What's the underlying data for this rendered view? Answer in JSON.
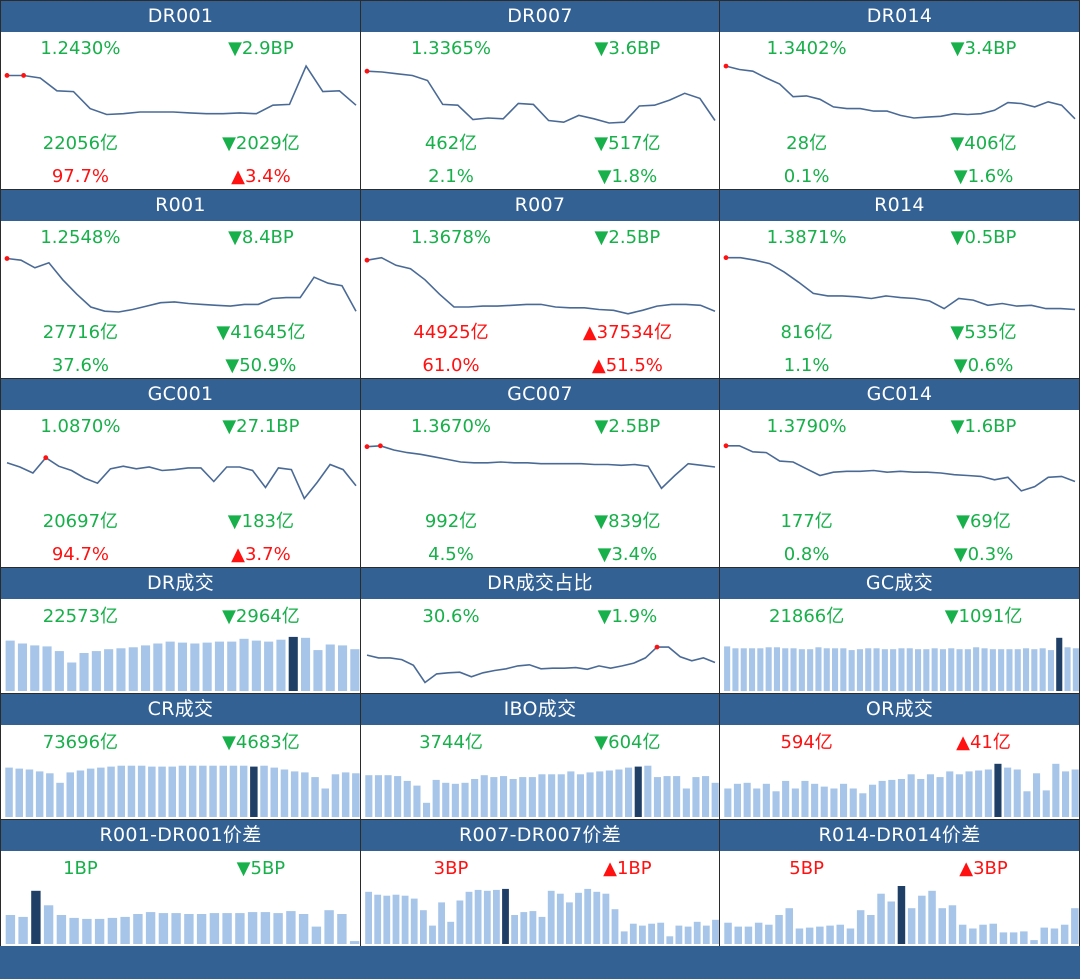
{
  "colors": {
    "header_bg": "#336194",
    "up": "#ff1111",
    "down": "#17b04a",
    "line": "#4a6a96",
    "bar": "#a6c5e8",
    "bar_highlight": "#1f3f66"
  },
  "panels": [
    {
      "id": "dr001",
      "title": "DR001",
      "type": "line",
      "stats": [
        {
          "text": "1.2430%",
          "color": "down"
        },
        {
          "text": "▼2.9BP",
          "color": "down"
        },
        {
          "text": "22056亿",
          "color": "down"
        },
        {
          "text": "▼2029亿",
          "color": "down"
        },
        {
          "text": "97.7%",
          "color": "up"
        },
        {
          "text": "▲3.4%",
          "color": "up"
        }
      ]
    },
    {
      "id": "dr007",
      "title": "DR007",
      "type": "line",
      "stats": [
        {
          "text": "1.3365%",
          "color": "down"
        },
        {
          "text": "▼3.6BP",
          "color": "down"
        },
        {
          "text": "462亿",
          "color": "down"
        },
        {
          "text": "▼517亿",
          "color": "down"
        },
        {
          "text": "2.1%",
          "color": "down"
        },
        {
          "text": "▼1.8%",
          "color": "down"
        }
      ]
    },
    {
      "id": "dr014",
      "title": "DR014",
      "type": "line",
      "stats": [
        {
          "text": "1.3402%",
          "color": "down"
        },
        {
          "text": "▼3.4BP",
          "color": "down"
        },
        {
          "text": "28亿",
          "color": "down"
        },
        {
          "text": "▼406亿",
          "color": "down"
        },
        {
          "text": "0.1%",
          "color": "down"
        },
        {
          "text": "▼1.6%",
          "color": "down"
        }
      ]
    },
    {
      "id": "r001",
      "title": "R001",
      "type": "line",
      "stats": [
        {
          "text": "1.2548%",
          "color": "down"
        },
        {
          "text": "▼8.4BP",
          "color": "down"
        },
        {
          "text": "27716亿",
          "color": "down"
        },
        {
          "text": "▼41645亿",
          "color": "down"
        },
        {
          "text": "37.6%",
          "color": "down"
        },
        {
          "text": "▼50.9%",
          "color": "down"
        }
      ]
    },
    {
      "id": "r007",
      "title": "R007",
      "type": "line",
      "stats": [
        {
          "text": "1.3678%",
          "color": "down"
        },
        {
          "text": "▼2.5BP",
          "color": "down"
        },
        {
          "text": "44925亿",
          "color": "up"
        },
        {
          "text": "▲37534亿",
          "color": "up"
        },
        {
          "text": "61.0%",
          "color": "up"
        },
        {
          "text": "▲51.5%",
          "color": "up"
        }
      ]
    },
    {
      "id": "r014",
      "title": "R014",
      "type": "line",
      "stats": [
        {
          "text": "1.3871%",
          "color": "down"
        },
        {
          "text": "▼0.5BP",
          "color": "down"
        },
        {
          "text": "816亿",
          "color": "down"
        },
        {
          "text": "▼535亿",
          "color": "down"
        },
        {
          "text": "1.1%",
          "color": "down"
        },
        {
          "text": "▼0.6%",
          "color": "down"
        }
      ]
    },
    {
      "id": "gc001",
      "title": "GC001",
      "type": "line",
      "stats": [
        {
          "text": "1.0870%",
          "color": "down"
        },
        {
          "text": "▼27.1BP",
          "color": "down"
        },
        {
          "text": "20697亿",
          "color": "down"
        },
        {
          "text": "▼183亿",
          "color": "down"
        },
        {
          "text": "94.7%",
          "color": "up"
        },
        {
          "text": "▲3.7%",
          "color": "up"
        }
      ]
    },
    {
      "id": "gc007",
      "title": "GC007",
      "type": "line",
      "stats": [
        {
          "text": "1.3670%",
          "color": "down"
        },
        {
          "text": "▼2.5BP",
          "color": "down"
        },
        {
          "text": "992亿",
          "color": "down"
        },
        {
          "text": "▼839亿",
          "color": "down"
        },
        {
          "text": "4.5%",
          "color": "down"
        },
        {
          "text": "▼3.4%",
          "color": "down"
        }
      ]
    },
    {
      "id": "gc014",
      "title": "GC014",
      "type": "line",
      "stats": [
        {
          "text": "1.3790%",
          "color": "down"
        },
        {
          "text": "▼1.6BP",
          "color": "down"
        },
        {
          "text": "177亿",
          "color": "down"
        },
        {
          "text": "▼69亿",
          "color": "down"
        },
        {
          "text": "0.8%",
          "color": "down"
        },
        {
          "text": "▼0.3%",
          "color": "down"
        }
      ]
    },
    {
      "id": "dr-volume",
      "title": "DR成交",
      "type": "bar",
      "stats": [
        {
          "text": "22573亿",
          "color": "down"
        },
        {
          "text": "▼2964亿",
          "color": "down"
        }
      ]
    },
    {
      "id": "dr-volume-share",
      "title": "DR成交占比",
      "type": "line",
      "stats": [
        {
          "text": "30.6%",
          "color": "down"
        },
        {
          "text": "▼1.9%",
          "color": "down"
        }
      ]
    },
    {
      "id": "gc-volume",
      "title": "GC成交",
      "type": "bar",
      "stats": [
        {
          "text": "21866亿",
          "color": "down"
        },
        {
          "text": "▼1091亿",
          "color": "down"
        }
      ]
    },
    {
      "id": "cr-volume",
      "title": "CR成交",
      "type": "bar",
      "stats": [
        {
          "text": "73696亿",
          "color": "down"
        },
        {
          "text": "▼4683亿",
          "color": "down"
        }
      ]
    },
    {
      "id": "ibo-volume",
      "title": "IBO成交",
      "type": "bar",
      "stats": [
        {
          "text": "3744亿",
          "color": "down"
        },
        {
          "text": "▼604亿",
          "color": "down"
        }
      ]
    },
    {
      "id": "or-volume",
      "title": "OR成交",
      "type": "bar",
      "stats": [
        {
          "text": "594亿",
          "color": "up"
        },
        {
          "text": "▲41亿",
          "color": "up"
        }
      ]
    },
    {
      "id": "r001-dr001-spread",
      "title": "R001-DR001价差",
      "type": "bar",
      "stats": [
        {
          "text": "1BP",
          "color": "down"
        },
        {
          "text": "▼5BP",
          "color": "down"
        }
      ]
    },
    {
      "id": "r007-dr007-spread",
      "title": "R007-DR007价差",
      "type": "bar",
      "stats": [
        {
          "text": "3BP",
          "color": "up"
        },
        {
          "text": "▲1BP",
          "color": "up"
        }
      ]
    },
    {
      "id": "r014-dr014-spread",
      "title": "R014-DR014价差",
      "type": "bar",
      "stats": [
        {
          "text": "5BP",
          "color": "up"
        },
        {
          "text": "▲3BP",
          "color": "up"
        }
      ]
    }
  ],
  "chart_data": [
    {
      "type": "line",
      "title": "DR001",
      "values": [
        83,
        83,
        80,
        65,
        64,
        44,
        37,
        38,
        40,
        40,
        40,
        39,
        38,
        38,
        39,
        38,
        48,
        49,
        94,
        64,
        65,
        48
      ],
      "ylim": [
        20,
        100
      ],
      "markers": [
        0,
        1
      ]
    },
    {
      "type": "line",
      "title": "DR007",
      "values": [
        88,
        87,
        85,
        83,
        77,
        49,
        48,
        31,
        33,
        32,
        50,
        49,
        30,
        28,
        36,
        32,
        27,
        28,
        47,
        48,
        54,
        62,
        56,
        30
      ],
      "ylim": [
        20,
        100
      ],
      "markers": [
        0
      ]
    },
    {
      "type": "line",
      "title": "DR014",
      "values": [
        94,
        90,
        88,
        80,
        73,
        58,
        59,
        55,
        46,
        44,
        44,
        41,
        41,
        36,
        33,
        34,
        35,
        38,
        37,
        38,
        42,
        51,
        50,
        46,
        52,
        48,
        32
      ],
      "ylim": [
        20,
        100
      ],
      "markers": [
        0
      ]
    },
    {
      "type": "line",
      "title": "R001",
      "values": [
        90,
        88,
        79,
        85,
        65,
        48,
        33,
        28,
        27,
        30,
        34,
        38,
        39,
        37,
        36,
        35,
        34,
        36,
        36,
        43,
        44,
        44,
        68,
        61,
        58,
        28
      ],
      "ylim": [
        20,
        100
      ],
      "markers": [
        0
      ]
    },
    {
      "type": "line",
      "title": "R007",
      "values": [
        88,
        91,
        82,
        78,
        65,
        48,
        33,
        33,
        34,
        34,
        35,
        36,
        36,
        33,
        32,
        32,
        30,
        29,
        25,
        29,
        34,
        36,
        36,
        35,
        28
      ],
      "ylim": [
        20,
        100
      ],
      "markers": [
        0
      ]
    },
    {
      "type": "line",
      "title": "R014",
      "values": [
        91,
        91,
        88,
        84,
        74,
        62,
        49,
        46,
        46,
        45,
        43,
        46,
        44,
        43,
        40,
        31,
        43,
        41,
        35,
        37,
        34,
        35,
        31,
        31,
        30
      ],
      "ylim": [
        20,
        100
      ],
      "markers": [
        0
      ]
    },
    {
      "type": "line",
      "title": "GC001",
      "values": [
        72,
        67,
        60,
        78,
        68,
        63,
        54,
        48,
        65,
        68,
        65,
        67,
        63,
        64,
        66,
        66,
        50,
        67,
        67,
        63,
        43,
        66,
        64,
        30,
        49,
        70,
        64,
        45
      ],
      "ylim": [
        20,
        100
      ],
      "markers": [
        3
      ]
    },
    {
      "type": "line",
      "title": "GC007",
      "values": [
        91,
        92,
        87,
        84,
        82,
        79,
        76,
        73,
        72,
        72,
        73,
        72,
        72,
        71,
        71,
        71,
        71,
        70,
        70,
        69,
        70,
        68,
        42,
        57,
        71,
        69,
        67
      ],
      "ylim": [
        20,
        100
      ],
      "markers": [
        0,
        1
      ]
    },
    {
      "type": "line",
      "title": "GC014",
      "values": [
        92,
        92,
        85,
        84,
        74,
        73,
        65,
        57,
        61,
        62,
        62,
        63,
        61,
        62,
        61,
        61,
        60,
        58,
        57,
        56,
        52,
        55,
        39,
        44,
        55,
        56,
        50
      ],
      "ylim": [
        20,
        100
      ],
      "markers": [
        0
      ]
    },
    {
      "type": "bar",
      "title": "DR成交",
      "values": [
        53,
        50,
        48,
        47,
        42,
        30,
        40,
        42,
        44,
        45,
        46,
        48,
        50,
        52,
        51,
        50,
        51,
        52,
        52,
        55,
        53,
        52,
        54,
        57,
        56,
        43,
        49,
        48,
        44
      ],
      "ylim": [
        0,
        60
      ],
      "highlight": 23
    },
    {
      "type": "line",
      "title": "DR成交占比",
      "values": [
        63,
        58,
        58,
        55,
        45,
        15,
        30,
        32,
        33,
        25,
        32,
        36,
        39,
        44,
        46,
        39,
        40,
        40,
        41,
        38,
        44,
        40,
        44,
        49,
        58,
        77,
        77,
        60,
        53,
        58,
        50
      ],
      "ylim": [
        0,
        100
      ],
      "markers": [
        25
      ]
    },
    {
      "type": "bar",
      "title": "GC成交",
      "values": [
        47,
        45,
        45,
        45,
        45,
        46,
        46,
        45,
        45,
        44,
        44,
        46,
        45,
        45,
        45,
        43,
        44,
        45,
        45,
        44,
        44,
        45,
        45,
        44,
        44,
        45,
        44,
        45,
        44,
        44,
        46,
        45,
        44,
        44,
        44,
        44,
        45,
        44,
        45,
        43,
        56,
        46,
        45
      ],
      "ylim": [
        0,
        60
      ],
      "highlight": 40
    },
    {
      "type": "bar",
      "title": "CR成交",
      "values": [
        52,
        51,
        50,
        48,
        46,
        36,
        47,
        49,
        51,
        52,
        53,
        54,
        54,
        54,
        53,
        53,
        53,
        54,
        54,
        54,
        54,
        54,
        54,
        54,
        53,
        54,
        52,
        50,
        48,
        47,
        42,
        30,
        45,
        47,
        46
      ],
      "ylim": [
        0,
        60
      ],
      "highlight": 24
    },
    {
      "type": "bar",
      "title": "IBO成交",
      "values": [
        44,
        44,
        44,
        43,
        38,
        33,
        15,
        39,
        36,
        35,
        36,
        40,
        44,
        42,
        43,
        40,
        42,
        42,
        45,
        45,
        45,
        48,
        45,
        47,
        48,
        49,
        50,
        52,
        53,
        54,
        42,
        43,
        43,
        30,
        42,
        43,
        36
      ],
      "ylim": [
        0,
        60
      ],
      "highlight": 28
    },
    {
      "type": "bar",
      "title": "OR成交",
      "values": [
        30,
        35,
        36,
        30,
        35,
        27,
        38,
        30,
        38,
        35,
        32,
        30,
        35,
        30,
        25,
        34,
        38,
        39,
        40,
        45,
        40,
        45,
        42,
        48,
        45,
        48,
        49,
        50,
        56,
        52,
        50,
        27,
        46,
        28,
        56,
        48,
        50
      ],
      "ylim": [
        0,
        60
      ],
      "highlight": 28
    },
    {
      "type": "bar",
      "title": "R001-DR001价差",
      "values": [
        30,
        28,
        55,
        40,
        30,
        27,
        26,
        26,
        27,
        28,
        31,
        33,
        32,
        32,
        31,
        31,
        32,
        32,
        32,
        33,
        33,
        32,
        34,
        31,
        18,
        35,
        31,
        3
      ],
      "ylim": [
        0,
        60
      ],
      "highlight": 2
    },
    {
      "type": "bar",
      "title": "R007-DR007价差",
      "values": [
        54,
        51,
        50,
        51,
        50,
        47,
        35,
        19,
        43,
        23,
        45,
        54,
        56,
        55,
        56,
        57,
        30,
        33,
        34,
        28,
        55,
        52,
        43,
        53,
        57,
        54,
        52,
        36,
        13,
        21,
        19,
        21,
        22,
        8,
        19,
        18,
        23,
        19,
        25
      ],
      "ylim": [
        0,
        60
      ],
      "highlight": 15
    },
    {
      "type": "bar",
      "title": "R014-DR014价差",
      "values": [
        22,
        18,
        18,
        22,
        20,
        30,
        37,
        16,
        17,
        18,
        19,
        20,
        16,
        35,
        30,
        52,
        44,
        60,
        37,
        50,
        55,
        37,
        40,
        20,
        16,
        20,
        21,
        12,
        12,
        13,
        4,
        17,
        16,
        20,
        37
      ],
      "ylim": [
        0,
        60
      ],
      "highlight": 17
    }
  ]
}
